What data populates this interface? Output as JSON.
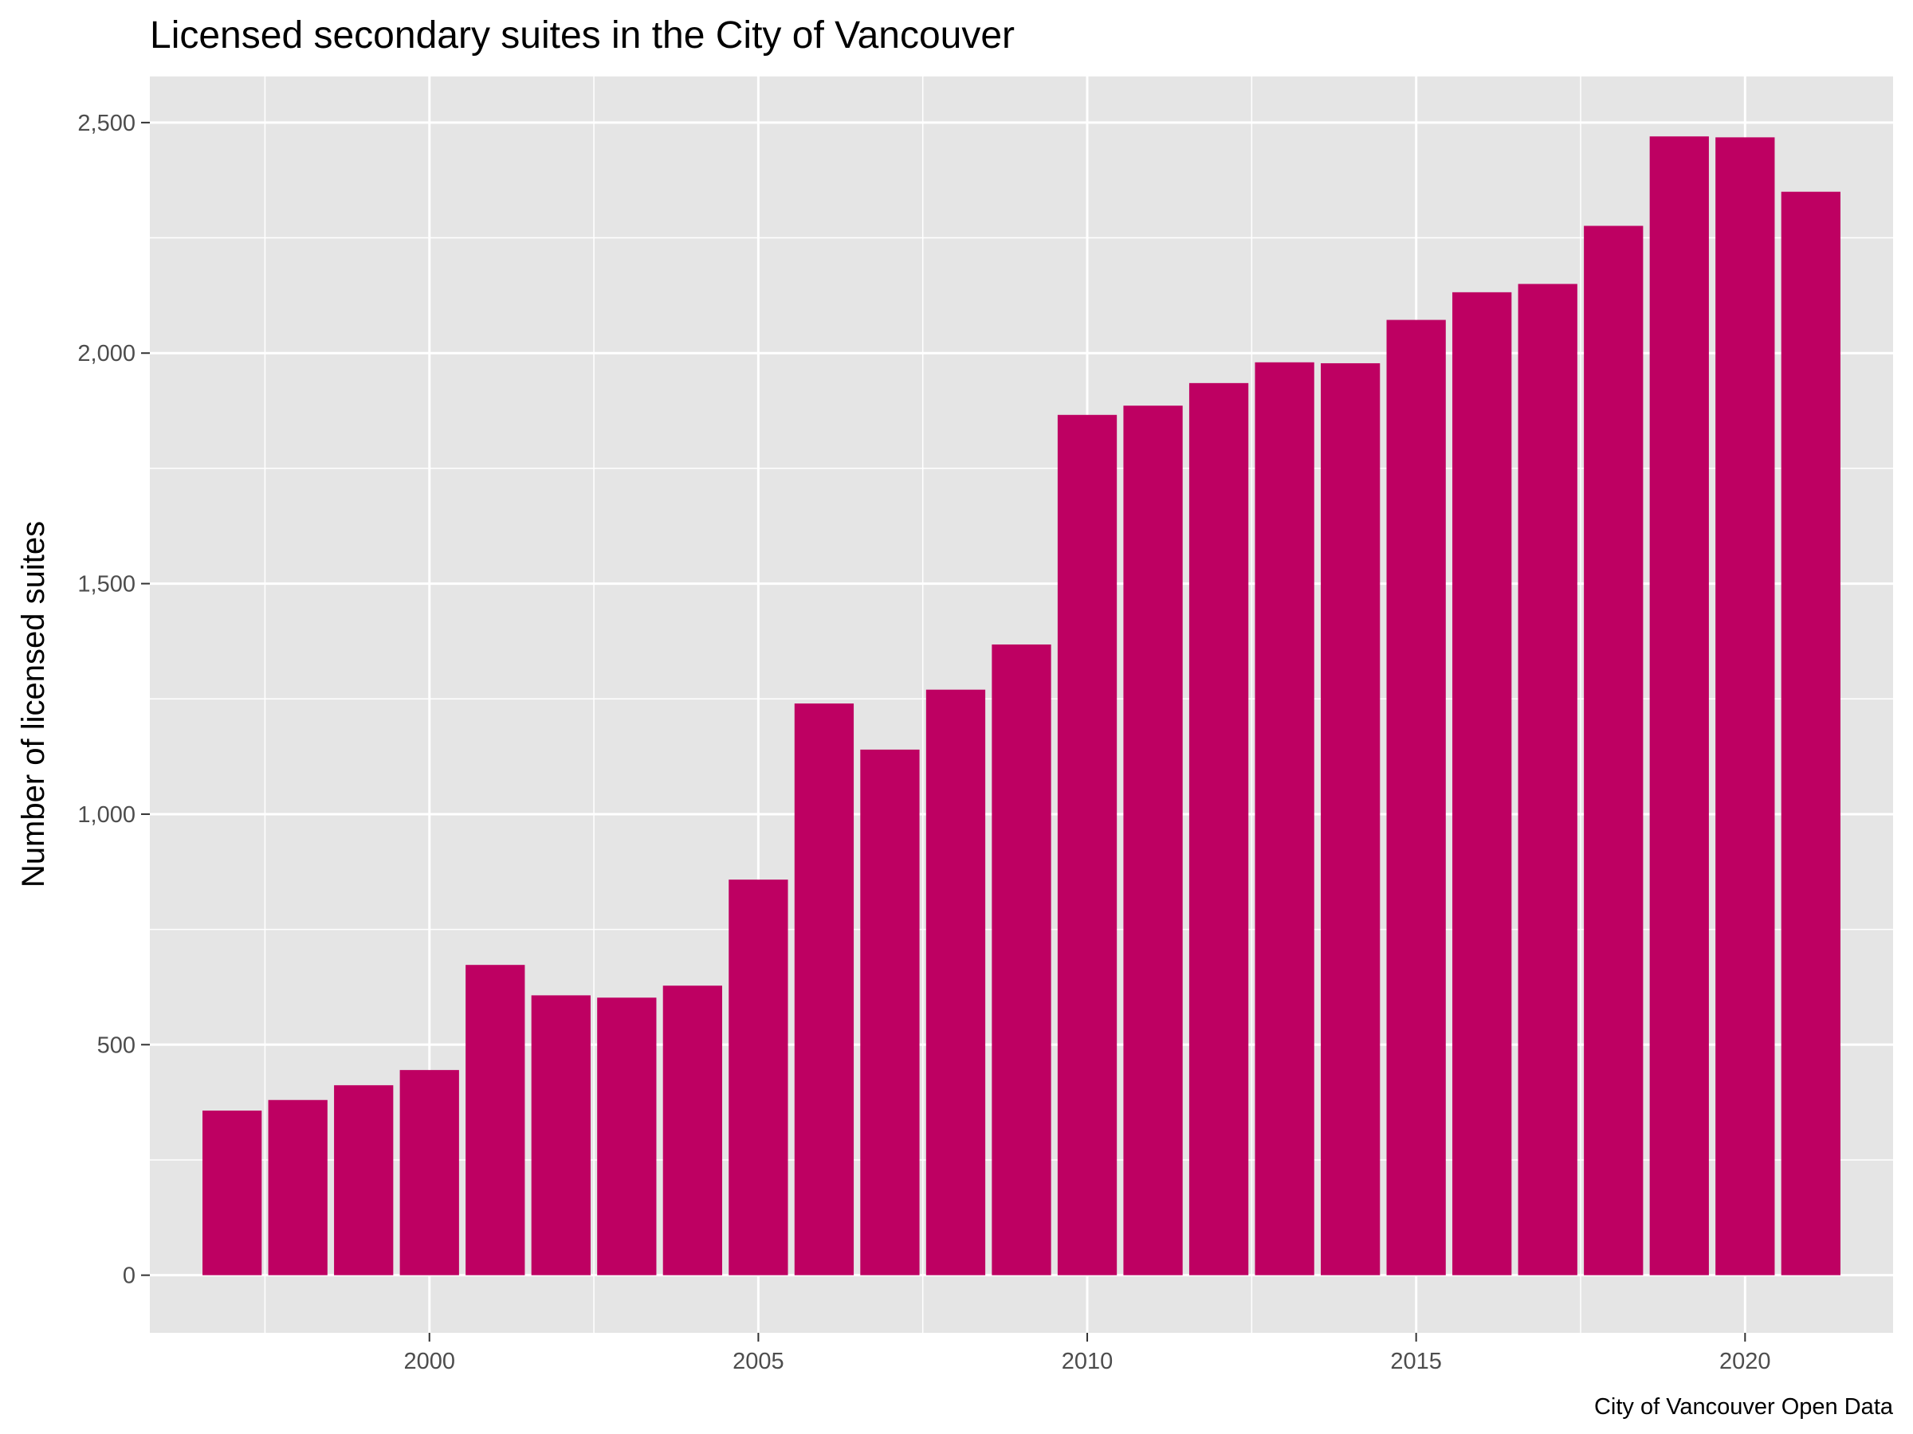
{
  "chart_data": {
    "type": "bar",
    "title": "Licensed secondary suites in the City of Vancouver",
    "xlabel": "",
    "ylabel": "Number of licensed suites",
    "caption": "City of Vancouver Open Data",
    "x": [
      1997,
      1998,
      1999,
      2000,
      2001,
      2002,
      2003,
      2004,
      2005,
      2006,
      2007,
      2008,
      2009,
      2010,
      2011,
      2012,
      2013,
      2014,
      2015,
      2016,
      2017,
      2018,
      2019,
      2020,
      2021
    ],
    "values": [
      357,
      380,
      412,
      445,
      673,
      607,
      602,
      628,
      858,
      1240,
      1140,
      1270,
      1368,
      1866,
      1886,
      1935,
      1980,
      1978,
      2072,
      2132,
      2150,
      2276,
      2470,
      2468,
      2350
    ],
    "xlim": [
      1995.75,
      2022.25
    ],
    "ylim": [
      -125,
      2600
    ],
    "x_ticks": [
      2000,
      2005,
      2010,
      2015,
      2020
    ],
    "x_tick_labels": [
      "2000",
      "2005",
      "2010",
      "2015",
      "2020"
    ],
    "y_ticks": [
      0,
      500,
      1000,
      1500,
      2000,
      2500
    ],
    "y_tick_labels": [
      "0",
      "500",
      "1,000",
      "1,500",
      "2,000",
      "2,500"
    ],
    "grid": true,
    "legend": "none",
    "colors": {
      "bar": "#be0062",
      "panel": "#e5e5e5",
      "grid": "#ffffff",
      "tick_text": "#4d4d4d",
      "tick_mark": "#333333"
    }
  }
}
